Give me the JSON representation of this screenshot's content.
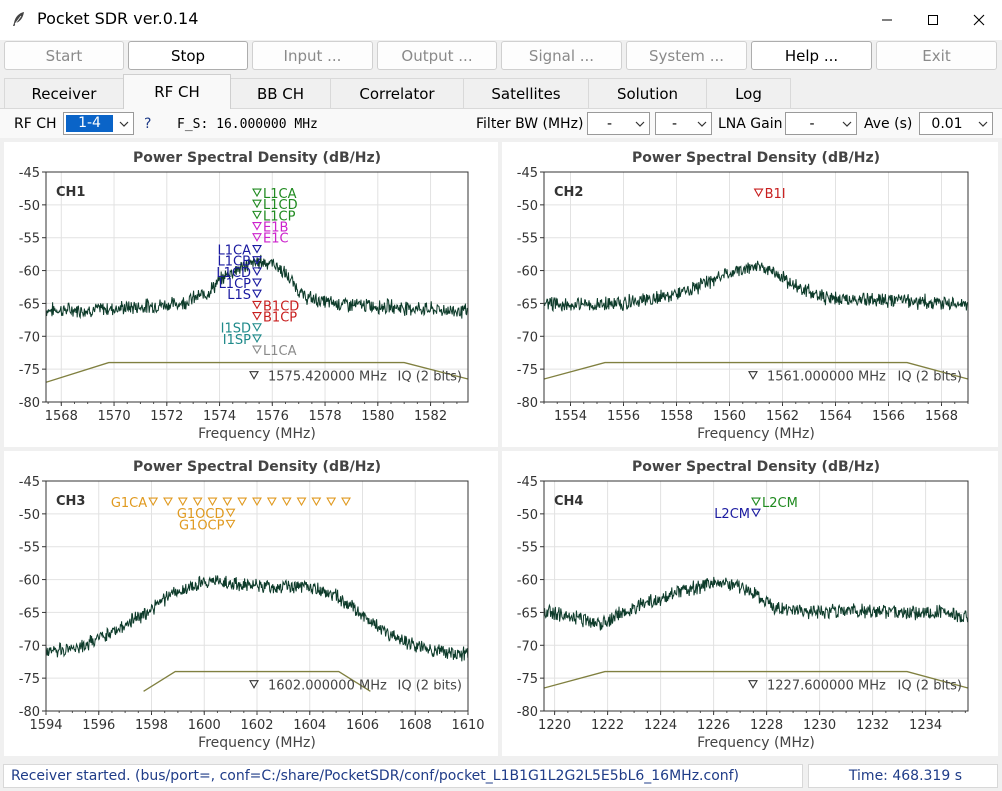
{
  "window": {
    "title": "Pocket SDR ver.0.14",
    "icon": "feather-icon"
  },
  "toolbar": {
    "buttons": [
      {
        "label": "Start",
        "enabled": false
      },
      {
        "label": "Stop",
        "enabled": true
      },
      {
        "label": "Input ...",
        "enabled": false
      },
      {
        "label": "Output ...",
        "enabled": false
      },
      {
        "label": "Signal ...",
        "enabled": false
      },
      {
        "label": "System ...",
        "enabled": false
      },
      {
        "label": "Help ...",
        "enabled": true
      },
      {
        "label": "Exit",
        "enabled": false
      }
    ]
  },
  "tabs": [
    {
      "label": "Receiver",
      "active": false
    },
    {
      "label": "RF CH",
      "active": true
    },
    {
      "label": "BB CH",
      "active": false
    },
    {
      "label": "Correlator",
      "active": false
    },
    {
      "label": "Satellites",
      "active": false
    },
    {
      "label": "Solution",
      "active": false
    },
    {
      "label": "Log",
      "active": false
    }
  ],
  "controls": {
    "rfch_label": "RF CH",
    "rfch_value": "1-4",
    "help_mark": "?",
    "fs_text": "F_S: 16.000000 MHz",
    "filter_label": "Filter BW (MHz)",
    "filter_value1": "-",
    "filter_value2": "-",
    "lna_label": "LNA Gain",
    "lna_value": "-",
    "ave_label": "Ave (s)",
    "ave_value": "0.01"
  },
  "colors": {
    "psd_trace": "#0d3b2a",
    "filter_line": "#808040",
    "grid": "#e2e2e2",
    "gps": "#1f8a1f",
    "galileo": "#cc22cc",
    "qzss": "#1a1aa0",
    "beidou": "#c81e1e",
    "navic": "#1f8a8a",
    "sbas": "#8a8a8a",
    "glonass": "#e09a20",
    "accent_blue": "#1f3c88"
  },
  "chart_data": [
    {
      "type": "line",
      "channel": "CH1",
      "title": "Power Spectral Density (dB/Hz)",
      "xlabel": "Frequency (MHz)",
      "xlim": [
        1567.42,
        1583.42
      ],
      "ylim": [
        -80,
        -45
      ],
      "xticks": [
        1568,
        1570,
        1572,
        1574,
        1576,
        1578,
        1580,
        1582
      ],
      "yticks": [
        -45,
        -50,
        -55,
        -60,
        -65,
        -70,
        -75,
        -80
      ],
      "center_label": "1575.420000 MHz",
      "sampling_label": "IQ (2 bits)",
      "center_freq": 1575.42,
      "psd": {
        "x": [
          1567.42,
          1569.0,
          1571.0,
          1572.5,
          1573.5,
          1574.3,
          1575.0,
          1575.6,
          1576.1,
          1576.6,
          1577.2,
          1578.0,
          1579.0,
          1580.5,
          1582.0,
          1583.42
        ],
        "y": [
          -66.0,
          -66.0,
          -65.5,
          -65.0,
          -63.5,
          -60.5,
          -59.2,
          -58.6,
          -59.0,
          -61.0,
          -64.0,
          -64.8,
          -65.2,
          -65.5,
          -65.9,
          -66.2
        ]
      },
      "filter": {
        "x": [
          1567.42,
          1569.8,
          1581.0,
          1583.42
        ],
        "y": [
          -77.0,
          -74.0,
          -74.0,
          -76.5
        ]
      },
      "signals": [
        {
          "label": "L1CA",
          "freq": 1575.42,
          "y": -48.2,
          "color": "#1f8a1f",
          "side": "right"
        },
        {
          "label": "L1CD",
          "freq": 1575.42,
          "y": -49.9,
          "color": "#1f8a1f",
          "side": "right"
        },
        {
          "label": "L1CP",
          "freq": 1575.42,
          "y": -51.6,
          "color": "#1f8a1f",
          "side": "right"
        },
        {
          "label": "E1B",
          "freq": 1575.42,
          "y": -53.3,
          "color": "#cc22cc",
          "side": "right"
        },
        {
          "label": "E1C",
          "freq": 1575.42,
          "y": -55.0,
          "color": "#cc22cc",
          "side": "right"
        },
        {
          "label": "L1CA",
          "freq": 1575.42,
          "y": -56.8,
          "color": "#1a1aa0",
          "side": "left"
        },
        {
          "label": "L1CB",
          "freq": 1575.42,
          "y": -58.5,
          "color": "#1a1aa0",
          "side": "left"
        },
        {
          "label": "L1CD",
          "freq": 1575.42,
          "y": -60.2,
          "color": "#1a1aa0",
          "side": "left"
        },
        {
          "label": "L1CP",
          "freq": 1575.42,
          "y": -61.9,
          "color": "#1a1aa0",
          "side": "left"
        },
        {
          "label": "L1S",
          "freq": 1575.42,
          "y": -63.6,
          "color": "#1a1aa0",
          "side": "left"
        },
        {
          "label": "B1CD",
          "freq": 1575.42,
          "y": -65.3,
          "color": "#c81e1e",
          "side": "right"
        },
        {
          "label": "B1CP",
          "freq": 1575.42,
          "y": -67.0,
          "color": "#c81e1e",
          "side": "right"
        },
        {
          "label": "I1SD",
          "freq": 1575.42,
          "y": -68.7,
          "color": "#1f8a8a",
          "side": "left"
        },
        {
          "label": "I1SP",
          "freq": 1575.42,
          "y": -70.4,
          "color": "#1f8a8a",
          "side": "left"
        },
        {
          "label": "L1CA",
          "freq": 1575.42,
          "y": -72.1,
          "color": "#8a8a8a",
          "side": "right"
        }
      ]
    },
    {
      "type": "line",
      "channel": "CH2",
      "title": "Power Spectral Density (dB/Hz)",
      "xlabel": "Frequency (MHz)",
      "xlim": [
        1553.0,
        1569.0
      ],
      "ylim": [
        -80,
        -45
      ],
      "xticks": [
        1554,
        1556,
        1558,
        1560,
        1562,
        1564,
        1566,
        1568
      ],
      "yticks": [
        -45,
        -50,
        -55,
        -60,
        -65,
        -70,
        -75,
        -80
      ],
      "center_label": "1561.000000 MHz",
      "sampling_label": "IQ (2 bits)",
      "center_freq": 1561.0,
      "psd": {
        "x": [
          1553.0,
          1555.0,
          1557.0,
          1558.5,
          1559.5,
          1560.3,
          1561.0,
          1561.7,
          1562.5,
          1563.5,
          1565.0,
          1567.0,
          1569.0
        ],
        "y": [
          -65.0,
          -65.3,
          -64.5,
          -63.0,
          -61.2,
          -60.0,
          -59.3,
          -60.2,
          -62.5,
          -64.0,
          -64.5,
          -64.7,
          -65.0
        ]
      },
      "filter": {
        "x": [
          1553.0,
          1555.3,
          1566.7,
          1569.0
        ],
        "y": [
          -76.5,
          -74.0,
          -74.0,
          -76.5
        ]
      },
      "signals": [
        {
          "label": "B1I",
          "freq": 1561.098,
          "y": -48.2,
          "color": "#c81e1e",
          "side": "right"
        }
      ]
    },
    {
      "type": "line",
      "channel": "CH3",
      "title": "Power Spectral Density (dB/Hz)",
      "xlabel": "Frequency (MHz)",
      "xlim": [
        1594.0,
        1610.0
      ],
      "ylim": [
        -80,
        -45
      ],
      "xticks": [
        1594,
        1596,
        1598,
        1600,
        1602,
        1604,
        1606,
        1608,
        1610
      ],
      "yticks": [
        -45,
        -50,
        -55,
        -60,
        -65,
        -70,
        -75,
        -80
      ],
      "center_label": "1602.000000 MHz",
      "sampling_label": "IQ (2 bits)",
      "center_freq": 1602.0,
      "psd": {
        "x": [
          1594.0,
          1595.5,
          1597.0,
          1598.5,
          1599.5,
          1600.3,
          1601.5,
          1603.0,
          1604.3,
          1605.0,
          1606.0,
          1607.0,
          1608.5,
          1610.0
        ],
        "y": [
          -71.0,
          -70.0,
          -67.0,
          -63.0,
          -61.0,
          -60.2,
          -60.8,
          -61.0,
          -61.2,
          -62.5,
          -65.5,
          -68.5,
          -70.5,
          -71.5
        ]
      },
      "filter": {
        "x": [
          1597.7,
          1598.9,
          1605.1,
          1606.3
        ],
        "y": [
          -77.0,
          -74.0,
          -74.0,
          -77.0
        ]
      },
      "signals": [
        {
          "label": "G1CA",
          "freq": 1598.0625,
          "y": -48.2,
          "color": "#e09a20",
          "side": "left"
        },
        {
          "label": "",
          "freq": 1598.625,
          "y": -48.2,
          "color": "#e09a20",
          "side": "right"
        },
        {
          "label": "",
          "freq": 1599.1875,
          "y": -48.2,
          "color": "#e09a20",
          "side": "right"
        },
        {
          "label": "",
          "freq": 1599.75,
          "y": -48.2,
          "color": "#e09a20",
          "side": "right"
        },
        {
          "label": "",
          "freq": 1600.3125,
          "y": -48.2,
          "color": "#e09a20",
          "side": "right"
        },
        {
          "label": "",
          "freq": 1600.875,
          "y": -48.2,
          "color": "#e09a20",
          "side": "right"
        },
        {
          "label": "",
          "freq": 1601.4375,
          "y": -48.2,
          "color": "#e09a20",
          "side": "right"
        },
        {
          "label": "",
          "freq": 1602.0,
          "y": -48.2,
          "color": "#e09a20",
          "side": "right"
        },
        {
          "label": "",
          "freq": 1602.5625,
          "y": -48.2,
          "color": "#e09a20",
          "side": "right"
        },
        {
          "label": "",
          "freq": 1603.125,
          "y": -48.2,
          "color": "#e09a20",
          "side": "right"
        },
        {
          "label": "",
          "freq": 1603.6875,
          "y": -48.2,
          "color": "#e09a20",
          "side": "right"
        },
        {
          "label": "",
          "freq": 1604.25,
          "y": -48.2,
          "color": "#e09a20",
          "side": "right"
        },
        {
          "label": "",
          "freq": 1604.8125,
          "y": -48.2,
          "color": "#e09a20",
          "side": "right"
        },
        {
          "label": "",
          "freq": 1605.375,
          "y": -48.2,
          "color": "#e09a20",
          "side": "right"
        },
        {
          "label": "G1OCD",
          "freq": 1600.995,
          "y": -49.9,
          "color": "#e09a20",
          "side": "left"
        },
        {
          "label": "G1OCP",
          "freq": 1600.995,
          "y": -51.6,
          "color": "#e09a20",
          "side": "left"
        }
      ]
    },
    {
      "type": "line",
      "channel": "CH4",
      "title": "Power Spectral Density (dB/Hz)",
      "xlabel": "Frequency (MHz)",
      "xlim": [
        1219.6,
        1235.6
      ],
      "ylim": [
        -80,
        -45
      ],
      "xticks": [
        1220,
        1222,
        1224,
        1226,
        1228,
        1230,
        1232,
        1234
      ],
      "yticks": [
        -45,
        -50,
        -55,
        -60,
        -65,
        -70,
        -75,
        -80
      ],
      "center_label": "1227.600000 MHz",
      "sampling_label": "IQ (2 bits)",
      "center_freq": 1227.6,
      "psd": {
        "x": [
          1219.6,
          1220.8,
          1221.8,
          1222.6,
          1223.5,
          1224.5,
          1225.3,
          1226.0,
          1226.6,
          1227.3,
          1227.7,
          1228.3,
          1229.5,
          1231.0,
          1233.0,
          1234.5,
          1235.6
        ],
        "y": [
          -65.0,
          -65.8,
          -66.8,
          -65.0,
          -63.5,
          -62.0,
          -61.2,
          -60.6,
          -60.8,
          -61.5,
          -62.5,
          -64.5,
          -64.8,
          -64.8,
          -64.9,
          -65.0,
          -65.8
        ]
      },
      "filter": {
        "x": [
          1219.6,
          1221.9,
          1233.3,
          1235.6
        ],
        "y": [
          -76.5,
          -74.0,
          -74.0,
          -76.5
        ]
      },
      "signals": [
        {
          "label": "L2CM",
          "freq": 1227.6,
          "y": -48.2,
          "color": "#1f8a1f",
          "side": "right"
        },
        {
          "label": "L2CM",
          "freq": 1227.6,
          "y": -49.9,
          "color": "#1a1aa0",
          "side": "left"
        }
      ]
    }
  ],
  "status": {
    "message": "Receiver started. (bus/port=, conf=C:/share/PocketSDR/conf/pocket_L1B1G1L2G2L5E5bL6_16MHz.conf)",
    "time": "Time: 468.319 s"
  }
}
